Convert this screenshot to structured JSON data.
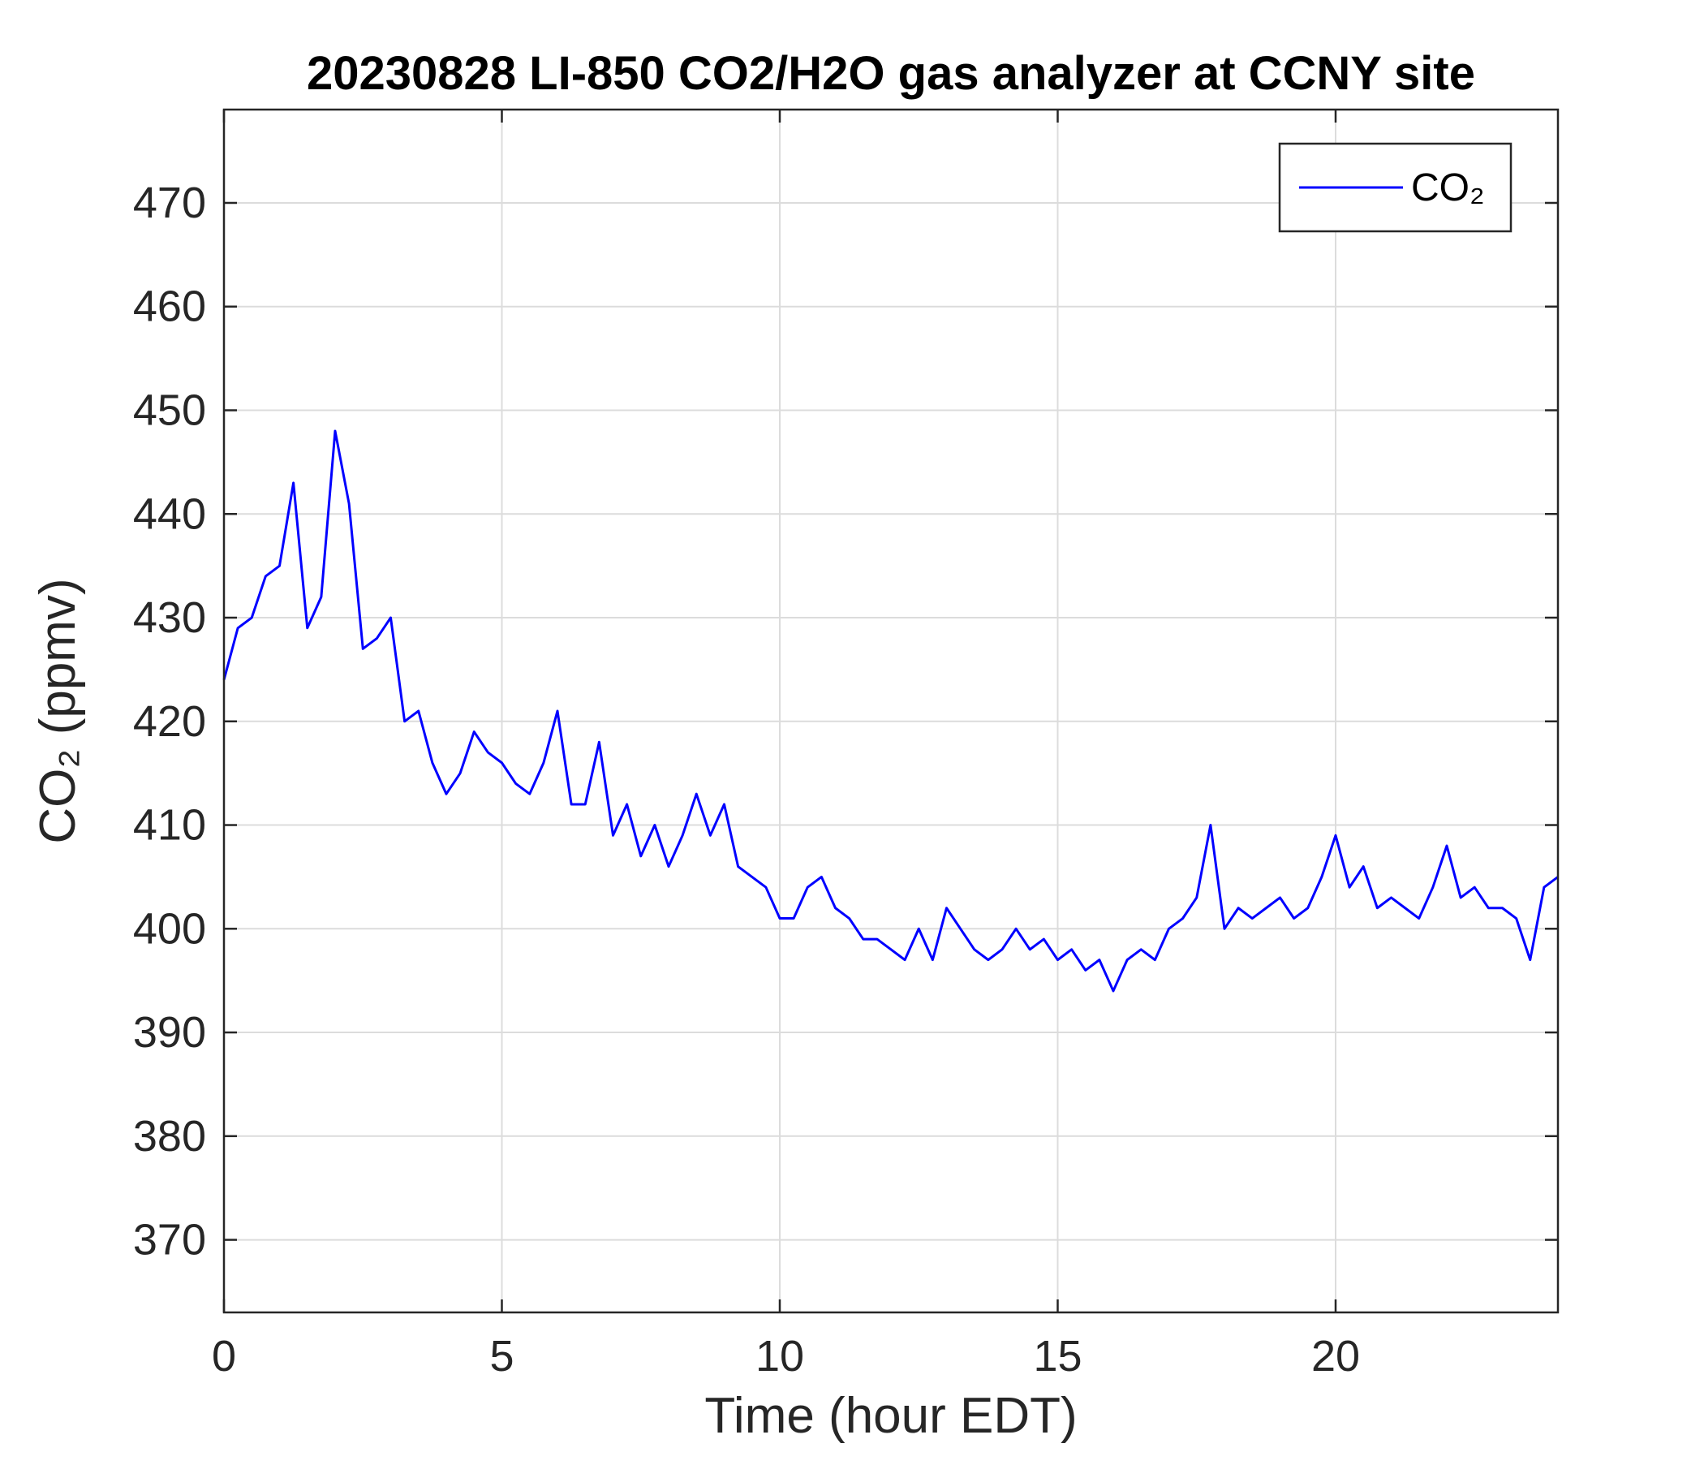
{
  "chart_data": {
    "type": "line",
    "title": "20230828 LI-850 CO2/H2O gas analyzer at CCNY site",
    "x_label": "Time (hour EDT)",
    "y_label": "CO₂ (ppmv)",
    "xlim": [
      0,
      24
    ],
    "xticks": [
      0,
      5,
      10,
      15,
      20
    ],
    "ylim": [
      363,
      479
    ],
    "yticks": [
      370,
      380,
      390,
      400,
      410,
      420,
      430,
      440,
      450,
      460,
      470
    ],
    "grid": true,
    "legend": "top-right",
    "x": [
      0,
      0.25,
      0.5,
      0.75,
      1,
      1.25,
      1.5,
      1.75,
      2,
      2.25,
      2.5,
      2.75,
      3,
      3.25,
      3.5,
      3.75,
      4,
      4.25,
      4.5,
      4.75,
      5,
      5.25,
      5.5,
      5.75,
      6,
      6.25,
      6.5,
      6.75,
      7,
      7.25,
      7.5,
      7.75,
      8,
      8.25,
      8.5,
      8.75,
      9,
      9.25,
      9.5,
      9.75,
      10,
      10.25,
      10.5,
      10.75,
      11,
      11.25,
      11.5,
      11.75,
      12,
      12.25,
      12.5,
      12.75,
      13,
      13.25,
      13.5,
      13.75,
      14,
      14.25,
      14.5,
      14.75,
      15,
      15.25,
      15.5,
      15.75,
      16,
      16.25,
      16.5,
      16.75,
      17,
      17.25,
      17.5,
      17.75,
      18,
      18.25,
      18.5,
      18.75,
      19,
      19.25,
      19.5,
      19.75,
      20,
      20.25,
      20.5,
      20.75,
      21,
      21.25,
      21.5,
      21.75,
      22,
      22.25,
      22.5,
      22.75,
      23,
      23.25,
      23.5,
      23.75,
      24
    ],
    "series": [
      {
        "name": "CO₂",
        "color": "#0000ff",
        "values": [
          424,
          429,
          430,
          434,
          435,
          443,
          429,
          432,
          448,
          441,
          427,
          428,
          430,
          420,
          421,
          416,
          413,
          415,
          419,
          417,
          416,
          414,
          413,
          416,
          421,
          412,
          412,
          418,
          409,
          412,
          407,
          410,
          406,
          409,
          413,
          409,
          412,
          406,
          405,
          404,
          401,
          401,
          404,
          405,
          402,
          401,
          399,
          399,
          398,
          397,
          400,
          397,
          402,
          400,
          398,
          397,
          398,
          400,
          398,
          399,
          397,
          398,
          396,
          397,
          394,
          397,
          398,
          397,
          400,
          401,
          403,
          410,
          400,
          402,
          401,
          402,
          403,
          401,
          402,
          405,
          409,
          404,
          406,
          402,
          403,
          402,
          401,
          404,
          408,
          403,
          404,
          402,
          402,
          401,
          397,
          404,
          405
        ]
      }
    ]
  }
}
